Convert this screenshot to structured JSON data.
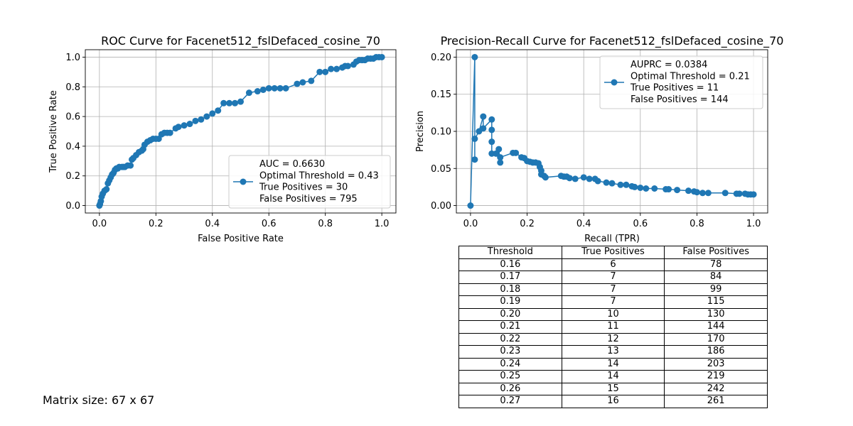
{
  "chart_data": [
    {
      "type": "line",
      "title": "ROC Curve for Facenet512_fslDefaced_cosine_70",
      "xlabel": "False Positive Rate",
      "ylabel": "True Positive Rate",
      "xlim": [
        -0.05,
        1.05
      ],
      "ylim": [
        -0.05,
        1.05
      ],
      "xticks": [
        "0.0",
        "0.2",
        "0.4",
        "0.6",
        "0.8",
        "1.0"
      ],
      "yticks": [
        "0.0",
        "0.2",
        "0.4",
        "0.6",
        "0.8",
        "1.0"
      ],
      "grid": true,
      "legend_position": "lower-right",
      "color": "#1f77b4",
      "legend_lines": [
        "AUC = 0.6630",
        "Optimal Threshold = 0.43",
        "True Positives = 30",
        "False Positives = 795"
      ],
      "x": [
        0.0,
        0.002,
        0.005,
        0.008,
        0.012,
        0.018,
        0.025,
        0.03,
        0.035,
        0.04,
        0.045,
        0.05,
        0.055,
        0.06,
        0.065,
        0.07,
        0.08,
        0.085,
        0.09,
        0.1,
        0.11,
        0.115,
        0.12,
        0.13,
        0.14,
        0.15,
        0.155,
        0.16,
        0.17,
        0.18,
        0.19,
        0.2,
        0.21,
        0.22,
        0.23,
        0.24,
        0.25,
        0.27,
        0.28,
        0.3,
        0.32,
        0.34,
        0.36,
        0.38,
        0.4,
        0.42,
        0.44,
        0.46,
        0.48,
        0.5,
        0.53,
        0.56,
        0.58,
        0.6,
        0.62,
        0.64,
        0.66,
        0.7,
        0.72,
        0.75,
        0.78,
        0.8,
        0.82,
        0.84,
        0.86,
        0.87,
        0.88,
        0.9,
        0.91,
        0.92,
        0.93,
        0.94,
        0.95,
        0.96,
        0.97,
        0.98,
        0.99,
        1.0
      ],
      "y": [
        0.0,
        0.01,
        0.03,
        0.06,
        0.08,
        0.1,
        0.11,
        0.15,
        0.17,
        0.19,
        0.21,
        0.22,
        0.24,
        0.25,
        0.25,
        0.26,
        0.26,
        0.26,
        0.26,
        0.27,
        0.27,
        0.31,
        0.32,
        0.34,
        0.36,
        0.37,
        0.38,
        0.41,
        0.43,
        0.44,
        0.45,
        0.45,
        0.45,
        0.48,
        0.49,
        0.49,
        0.49,
        0.52,
        0.53,
        0.54,
        0.55,
        0.57,
        0.58,
        0.6,
        0.62,
        0.64,
        0.69,
        0.69,
        0.69,
        0.7,
        0.76,
        0.77,
        0.78,
        0.79,
        0.79,
        0.79,
        0.79,
        0.82,
        0.83,
        0.84,
        0.9,
        0.9,
        0.92,
        0.92,
        0.93,
        0.94,
        0.94,
        0.95,
        0.97,
        0.98,
        0.98,
        0.98,
        0.99,
        0.99,
        0.99,
        1.0,
        1.0,
        1.0
      ]
    },
    {
      "type": "line",
      "title": "Precision-Recall Curve for Facenet512_fslDefaced_cosine_70",
      "xlabel": "Recall (TPR)",
      "ylabel": "Precision",
      "xlim": [
        -0.05,
        1.05
      ],
      "ylim": [
        -0.01,
        0.21
      ],
      "xticks": [
        "0.0",
        "0.2",
        "0.4",
        "0.6",
        "0.8",
        "1.0"
      ],
      "yticks": [
        "0.00",
        "0.05",
        "0.10",
        "0.15",
        "0.20"
      ],
      "grid": true,
      "legend_position": "upper-right",
      "color": "#1f77b4",
      "legend_lines": [
        "AUPRC = 0.0384",
        "Optimal Threshold = 0.21",
        "True Positives = 11",
        "False Positives = 144"
      ],
      "x": [
        0.0,
        0.015,
        0.015,
        0.015,
        0.03,
        0.045,
        0.045,
        0.075,
        0.075,
        0.075,
        0.075,
        0.09,
        0.1,
        0.105,
        0.105,
        0.15,
        0.16,
        0.18,
        0.19,
        0.2,
        0.21,
        0.22,
        0.23,
        0.24,
        0.245,
        0.25,
        0.25,
        0.26,
        0.265,
        0.32,
        0.33,
        0.34,
        0.35,
        0.37,
        0.4,
        0.42,
        0.44,
        0.45,
        0.48,
        0.5,
        0.53,
        0.55,
        0.57,
        0.58,
        0.6,
        0.62,
        0.65,
        0.69,
        0.7,
        0.73,
        0.77,
        0.79,
        0.8,
        0.82,
        0.84,
        0.9,
        0.94,
        0.95,
        0.97,
        0.98,
        0.99,
        1.0
      ],
      "y": [
        0.0,
        0.2,
        0.062,
        0.09,
        0.1,
        0.12,
        0.104,
        0.116,
        0.086,
        0.102,
        0.07,
        0.07,
        0.076,
        0.058,
        0.065,
        0.071,
        0.071,
        0.065,
        0.064,
        0.06,
        0.059,
        0.058,
        0.058,
        0.057,
        0.052,
        0.047,
        0.042,
        0.04,
        0.038,
        0.04,
        0.039,
        0.039,
        0.037,
        0.036,
        0.038,
        0.036,
        0.036,
        0.033,
        0.031,
        0.03,
        0.028,
        0.028,
        0.026,
        0.025,
        0.024,
        0.023,
        0.023,
        0.022,
        0.022,
        0.021,
        0.02,
        0.019,
        0.018,
        0.017,
        0.017,
        0.017,
        0.016,
        0.016,
        0.016,
        0.015,
        0.015,
        0.015
      ]
    }
  ],
  "table": {
    "headers": [
      "Threshold",
      "True Positives",
      "False Positives"
    ],
    "rows": [
      [
        "0.16",
        "6",
        "78"
      ],
      [
        "0.17",
        "7",
        "84"
      ],
      [
        "0.18",
        "7",
        "99"
      ],
      [
        "0.19",
        "7",
        "115"
      ],
      [
        "0.20",
        "10",
        "130"
      ],
      [
        "0.21",
        "11",
        "144"
      ],
      [
        "0.22",
        "12",
        "170"
      ],
      [
        "0.23",
        "13",
        "186"
      ],
      [
        "0.24",
        "14",
        "203"
      ],
      [
        "0.25",
        "14",
        "219"
      ],
      [
        "0.26",
        "15",
        "242"
      ],
      [
        "0.27",
        "16",
        "261"
      ]
    ]
  },
  "footer": {
    "matrix_size": "Matrix size: 67 x 67"
  }
}
